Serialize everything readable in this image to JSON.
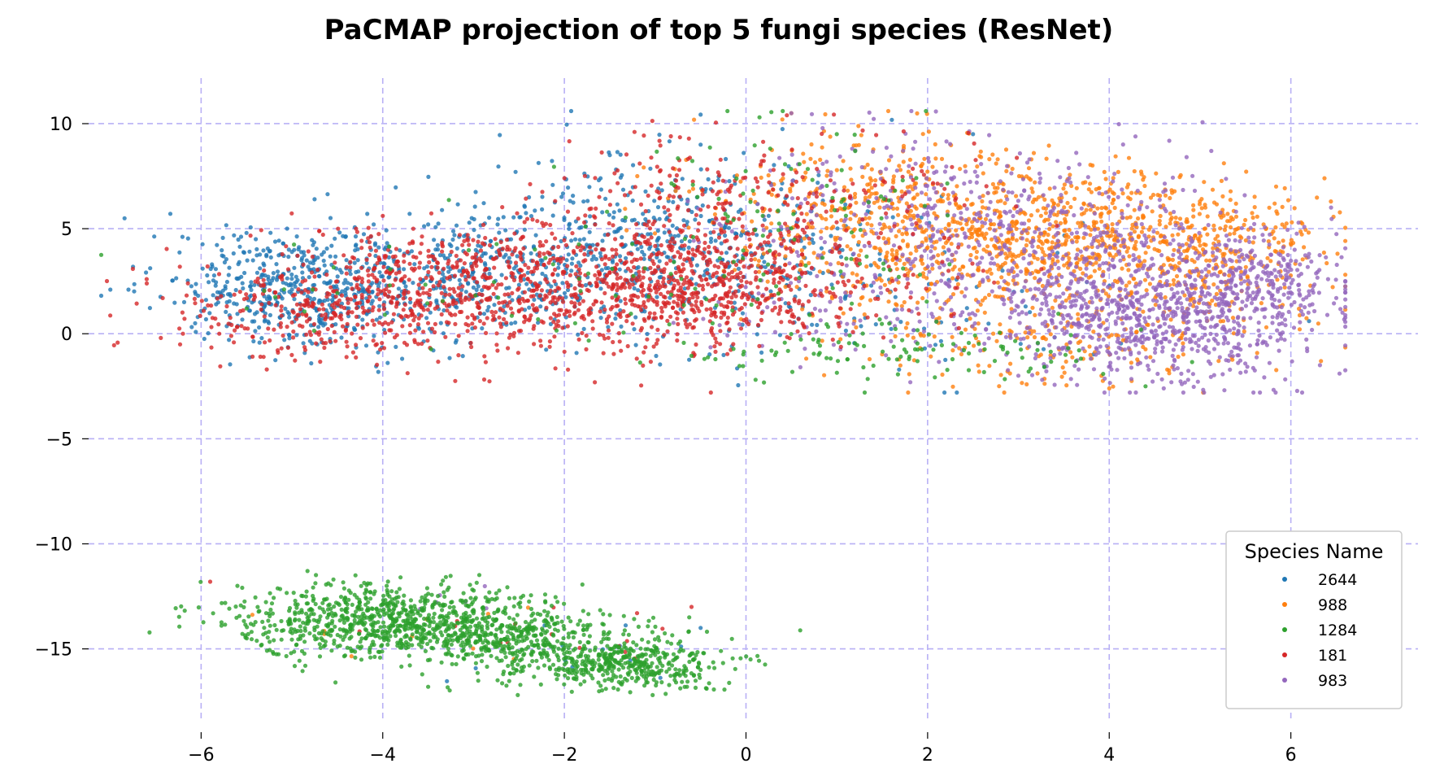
{
  "chart_data": {
    "type": "scatter",
    "title": "PaCMAP projection of top 5 fungi species (ResNet)",
    "xlabel": "",
    "ylabel": "",
    "xlim": [
      -7.4,
      7.4
    ],
    "ylim": [
      -18.5,
      12.4
    ],
    "xticks": [
      -6,
      -4,
      -2,
      0,
      2,
      4,
      6
    ],
    "yticks": [
      10,
      5,
      0,
      -5,
      -10,
      -15
    ],
    "xtick_labels": [
      "−6",
      "−4",
      "−2",
      "0",
      "2",
      "4",
      "6"
    ],
    "ytick_labels": [
      "10",
      "5",
      "0",
      "−5",
      "−10",
      "−15"
    ],
    "grid": true,
    "legend": {
      "title": "Species Name",
      "placement": "bottom-right"
    },
    "series": [
      {
        "name": "2644",
        "color": "#1f77b4",
        "clusters": [
          {
            "cx": -4.9,
            "cy": 2.2,
            "sx": 0.75,
            "sy": 1.5,
            "n": 520
          },
          {
            "cx": -2.8,
            "cy": 2.8,
            "sx": 0.9,
            "sy": 1.6,
            "n": 380
          },
          {
            "cx": -1.0,
            "cy": 4.5,
            "sx": 0.8,
            "sy": 2.0,
            "n": 320
          },
          {
            "cx": 0.3,
            "cy": 3.0,
            "sx": 0.7,
            "sy": 2.0,
            "n": 140
          },
          {
            "cx": 2.0,
            "cy": 2.0,
            "sx": 1.2,
            "sy": 2.0,
            "n": 60
          },
          {
            "cx": -1.8,
            "cy": -14.8,
            "sx": 0.8,
            "sy": 0.9,
            "n": 12
          }
        ],
        "examples": [
          [
            -7.0,
            2.1
          ],
          [
            -6.8,
            2.1
          ],
          [
            -5.5,
            4.8
          ],
          [
            -4.1,
            5.2
          ],
          [
            -3.5,
            5.2
          ],
          [
            -1.5,
            8.5
          ],
          [
            -0.5,
            9.0
          ],
          [
            2.5,
            9.5
          ],
          [
            6.2,
            0.6
          ],
          [
            -0.5,
            -14.0
          ]
        ]
      },
      {
        "name": "988",
        "color": "#ff7f0e",
        "clusters": [
          {
            "cx": 3.3,
            "cy": 4.5,
            "sx": 1.2,
            "sy": 1.8,
            "n": 850
          },
          {
            "cx": 1.3,
            "cy": 5.5,
            "sx": 0.9,
            "sy": 2.0,
            "n": 350
          },
          {
            "cx": 5.1,
            "cy": 4.0,
            "sx": 0.7,
            "sy": 1.5,
            "n": 250
          },
          {
            "cx": 3.5,
            "cy": -0.5,
            "sx": 1.2,
            "sy": 1.1,
            "n": 160
          },
          {
            "cx": -3.2,
            "cy": -14.0,
            "sx": 1.0,
            "sy": 0.8,
            "n": 10
          }
        ],
        "examples": [
          [
            0.4,
            10.2
          ],
          [
            0.5,
            10.5
          ],
          [
            4.0,
            -2.6
          ],
          [
            5.7,
            5.2
          ],
          [
            6.0,
            4.3
          ],
          [
            2.6,
            6.3
          ],
          [
            3.2,
            5.0
          ]
        ]
      },
      {
        "name": "1284",
        "color": "#2ca02c",
        "clusters": [
          {
            "cx": -4.1,
            "cy": -13.7,
            "sx": 0.8,
            "sy": 0.9,
            "n": 750
          },
          {
            "cx": -2.6,
            "cy": -14.5,
            "sx": 0.7,
            "sy": 0.8,
            "n": 450
          },
          {
            "cx": -1.3,
            "cy": -15.7,
            "sx": 0.55,
            "sy": 0.6,
            "n": 420
          },
          {
            "cx": 1.8,
            "cy": -0.8,
            "sx": 1.1,
            "sy": 0.8,
            "n": 110
          },
          {
            "cx": 0.6,
            "cy": 6.0,
            "sx": 0.9,
            "sy": 2.5,
            "n": 90
          },
          {
            "cx": -2.0,
            "cy": 2.0,
            "sx": 1.8,
            "sy": 1.5,
            "n": 70
          }
        ],
        "examples": [
          [
            -5.6,
            -12.0
          ],
          [
            -4.3,
            -11.5
          ],
          [
            -0.5,
            -16.0
          ],
          [
            0.05,
            -15.5
          ],
          [
            4.4,
            -2.5
          ],
          [
            1.0,
            9.5
          ]
        ]
      },
      {
        "name": "181",
        "color": "#d62728",
        "clusters": [
          {
            "cx": -2.3,
            "cy": 2.3,
            "sx": 1.5,
            "sy": 1.5,
            "n": 1000
          },
          {
            "cx": -4.6,
            "cy": 1.0,
            "sx": 0.8,
            "sy": 1.0,
            "n": 260
          },
          {
            "cx": -0.3,
            "cy": 2.3,
            "sx": 0.7,
            "sy": 1.6,
            "n": 330
          },
          {
            "cx": 1.0,
            "cy": 5.5,
            "sx": 1.0,
            "sy": 2.3,
            "n": 160
          },
          {
            "cx": -0.8,
            "cy": 6.5,
            "sx": 0.9,
            "sy": 1.5,
            "n": 120
          },
          {
            "cx": -2.3,
            "cy": -14.3,
            "sx": 1.5,
            "sy": 1.0,
            "n": 16
          }
        ],
        "examples": [
          [
            -5.9,
            -11.8
          ],
          [
            -6.6,
            2.6
          ],
          [
            -6.2,
            0.0
          ],
          [
            -5.8,
            0.0
          ],
          [
            -0.6,
            -13.0
          ],
          [
            0.45,
            10.4
          ],
          [
            -1.2,
            -13.3
          ]
        ]
      },
      {
        "name": "983",
        "color": "#9467bd",
        "clusters": [
          {
            "cx": 4.5,
            "cy": 0.8,
            "sx": 0.9,
            "sy": 1.6,
            "n": 750
          },
          {
            "cx": 3.2,
            "cy": 4.0,
            "sx": 1.2,
            "sy": 2.3,
            "n": 470
          },
          {
            "cx": 5.7,
            "cy": 2.4,
            "sx": 0.5,
            "sy": 1.1,
            "n": 220
          },
          {
            "cx": 1.8,
            "cy": 6.3,
            "sx": 1.0,
            "sy": 1.8,
            "n": 160
          },
          {
            "cx": 0.9,
            "cy": 1.5,
            "sx": 0.8,
            "sy": 1.5,
            "n": 60
          },
          {
            "cx": -3.3,
            "cy": -13.0,
            "sx": 0.6,
            "sy": 0.8,
            "n": 6
          }
        ],
        "examples": [
          [
            6.2,
            3.8
          ],
          [
            6.5,
            1.7
          ],
          [
            4.6,
            -2.6
          ],
          [
            4.8,
            -2.4
          ],
          [
            0.5,
            10.5
          ],
          [
            6.1,
            3.3
          ]
        ]
      }
    ]
  }
}
